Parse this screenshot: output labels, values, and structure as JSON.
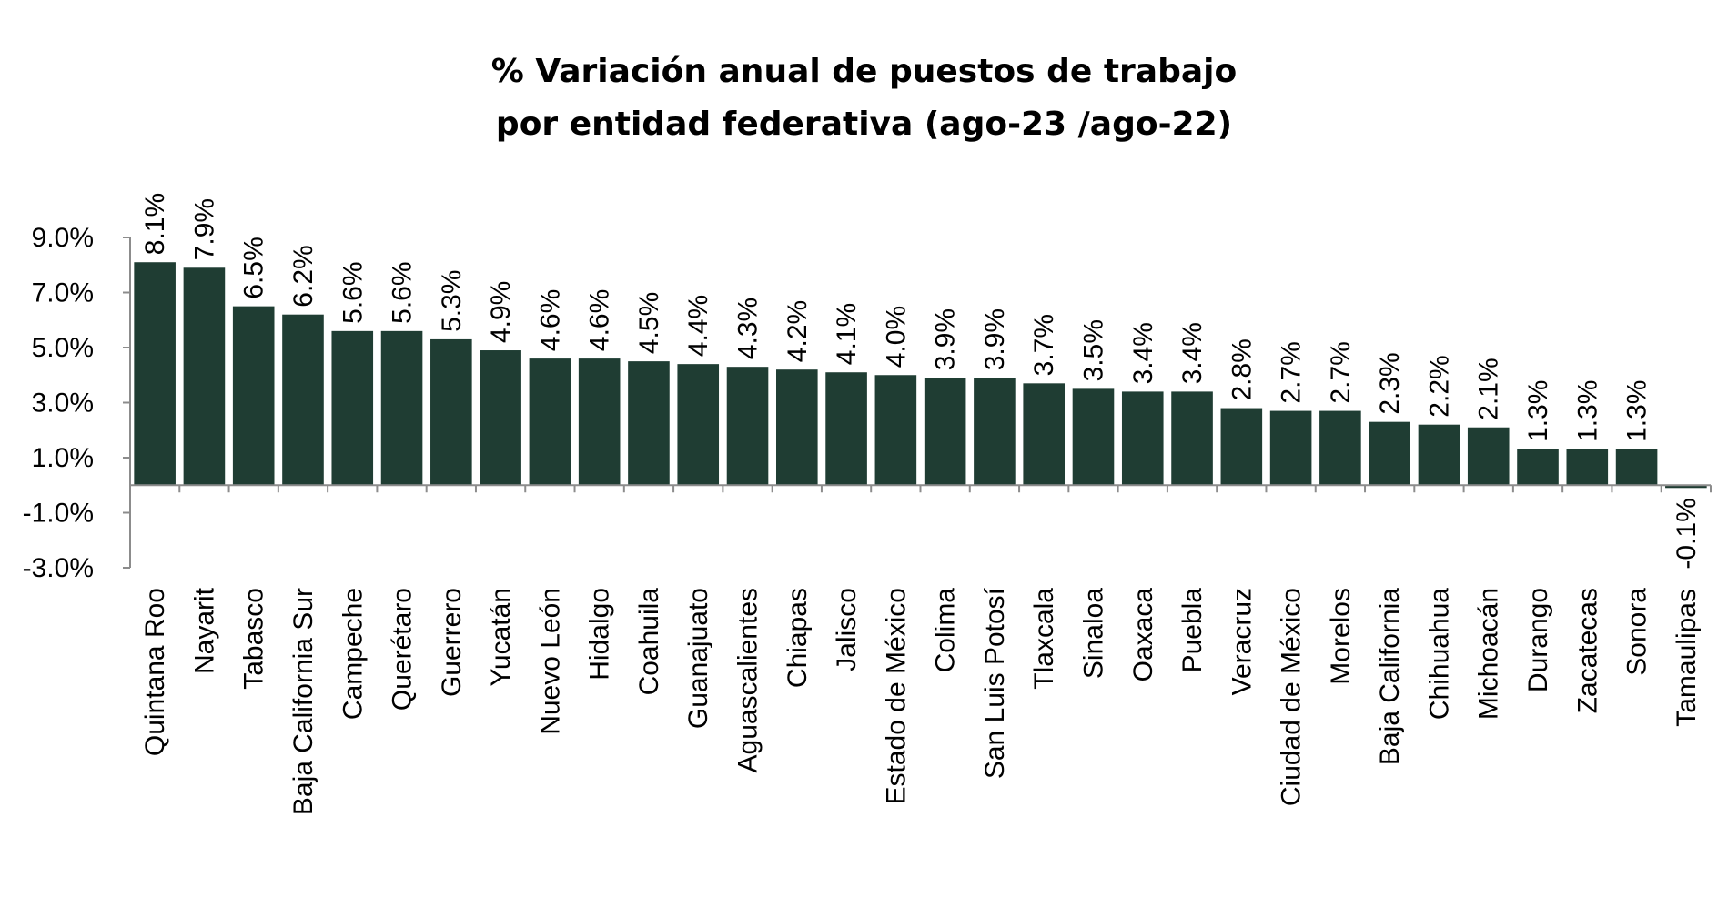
{
  "chart_data": {
    "type": "bar",
    "title": "% Variación anual de puestos de trabajo",
    "subtitle": "por entidad federativa (ago-23 /ago-22)",
    "xlabel": "",
    "ylabel": "",
    "ylim": [
      -3.0,
      9.0
    ],
    "yticks": [
      "9.0%",
      "7.0%",
      "5.0%",
      "3.0%",
      "1.0%",
      "-1.0%",
      "-3.0%"
    ],
    "ytick_values": [
      9,
      7,
      5,
      3,
      1,
      -1,
      -3
    ],
    "bar_color": "#1f3d33",
    "grid": false,
    "legend": "none",
    "categories": [
      "Quintana Roo",
      "Nayarit",
      "Tabasco",
      "Baja California Sur",
      "Campeche",
      "Querétaro",
      "Guerrero",
      "Yucatán",
      "Nuevo León",
      "Hidalgo",
      "Coahuila",
      "Guanajuato",
      "Aguascalientes",
      "Chiapas",
      "Jalisco",
      "Estado de México",
      "Colima",
      "San Luis Potosí",
      "Tlaxcala",
      "Sinaloa",
      "Oaxaca",
      "Puebla",
      "Veracruz",
      "Ciudad de México",
      "Morelos",
      "Baja California",
      "Chihuahua",
      "Michoacán",
      "Durango",
      "Zacatecas",
      "Sonora",
      "Tamaulipas"
    ],
    "values": [
      8.1,
      7.9,
      6.5,
      6.2,
      5.6,
      5.6,
      5.3,
      4.9,
      4.6,
      4.6,
      4.5,
      4.4,
      4.3,
      4.2,
      4.1,
      4.0,
      3.9,
      3.9,
      3.7,
      3.5,
      3.4,
      3.4,
      2.8,
      2.7,
      2.7,
      2.3,
      2.2,
      2.1,
      1.3,
      1.3,
      1.3,
      -0.1
    ],
    "data_labels": [
      "8.1%",
      "7.9%",
      "6.5%",
      "6.2%",
      "5.6%",
      "5.6%",
      "5.3%",
      "4.9%",
      "4.6%",
      "4.6%",
      "4.5%",
      "4.4%",
      "4.3%",
      "4.2%",
      "4.1%",
      "4.0%",
      "3.9%",
      "3.9%",
      "3.7%",
      "3.5%",
      "3.4%",
      "3.4%",
      "2.8%",
      "2.7%",
      "2.7%",
      "2.3%",
      "2.2%",
      "2.1%",
      "1.3%",
      "1.3%",
      "1.3%",
      "-0.1%"
    ]
  }
}
